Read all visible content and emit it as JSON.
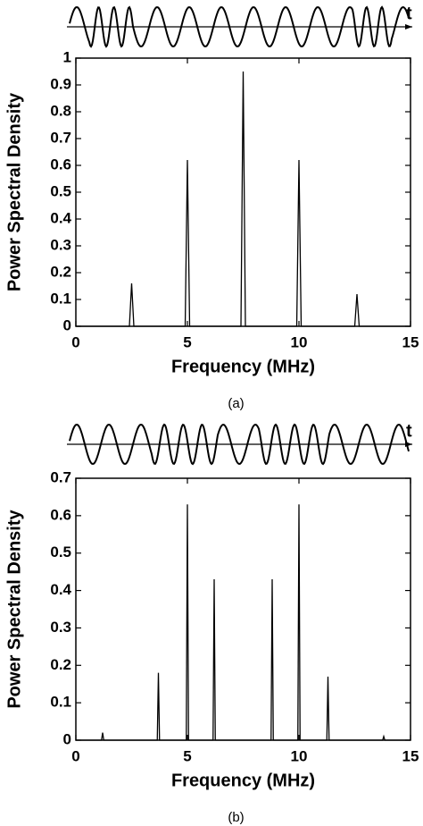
{
  "chart_data": [
    {
      "type": "line",
      "signal_label": "t",
      "xlabel": "Frequency (MHz)",
      "ylabel": "Power Spectral Density",
      "caption": "(a)",
      "x": [
        0,
        2.4,
        2.5,
        2.6,
        4.9,
        5.0,
        5.1,
        7.4,
        7.5,
        7.6,
        9.9,
        10.0,
        10.1,
        12.5,
        12.6,
        12.7,
        15
      ],
      "values": [
        0,
        0,
        0.16,
        0,
        0,
        0.62,
        0,
        0,
        0.95,
        0,
        0,
        0.62,
        0,
        0,
        0.12,
        0,
        0
      ],
      "color": "#000000",
      "xlim": [
        0,
        15
      ],
      "xticks": [
        0,
        5,
        10,
        15
      ],
      "ylim": [
        0,
        1
      ],
      "yticks": [
        0,
        0.1,
        0.2,
        0.3,
        0.4,
        0.5,
        0.6,
        0.7,
        0.8,
        0.9,
        1
      ]
    },
    {
      "type": "line",
      "signal_label": "t",
      "xlabel": "Frequency (MHz)",
      "ylabel": "Power Spectral Density",
      "caption": "(b)",
      "x": [
        0,
        1.15,
        1.2,
        1.25,
        3.65,
        3.7,
        3.75,
        4.95,
        5.0,
        5.05,
        6.15,
        6.2,
        6.25,
        8.75,
        8.8,
        8.85,
        9.95,
        10.0,
        10.05,
        11.25,
        11.3,
        11.35,
        13.75,
        13.8,
        13.85,
        15
      ],
      "values": [
        0,
        0,
        0.02,
        0,
        0,
        0.18,
        0,
        0,
        0.63,
        0,
        0,
        0.43,
        0,
        0,
        0.43,
        0,
        0,
        0.63,
        0,
        0,
        0.17,
        0,
        0,
        0.01,
        0,
        0
      ],
      "color": "#000000",
      "xlim": [
        0,
        15
      ],
      "xticks": [
        0,
        5,
        10,
        15
      ],
      "ylim": [
        0,
        0.7
      ],
      "yticks": [
        0,
        0.1,
        0.2,
        0.3,
        0.4,
        0.5,
        0.6,
        0.7
      ]
    }
  ]
}
